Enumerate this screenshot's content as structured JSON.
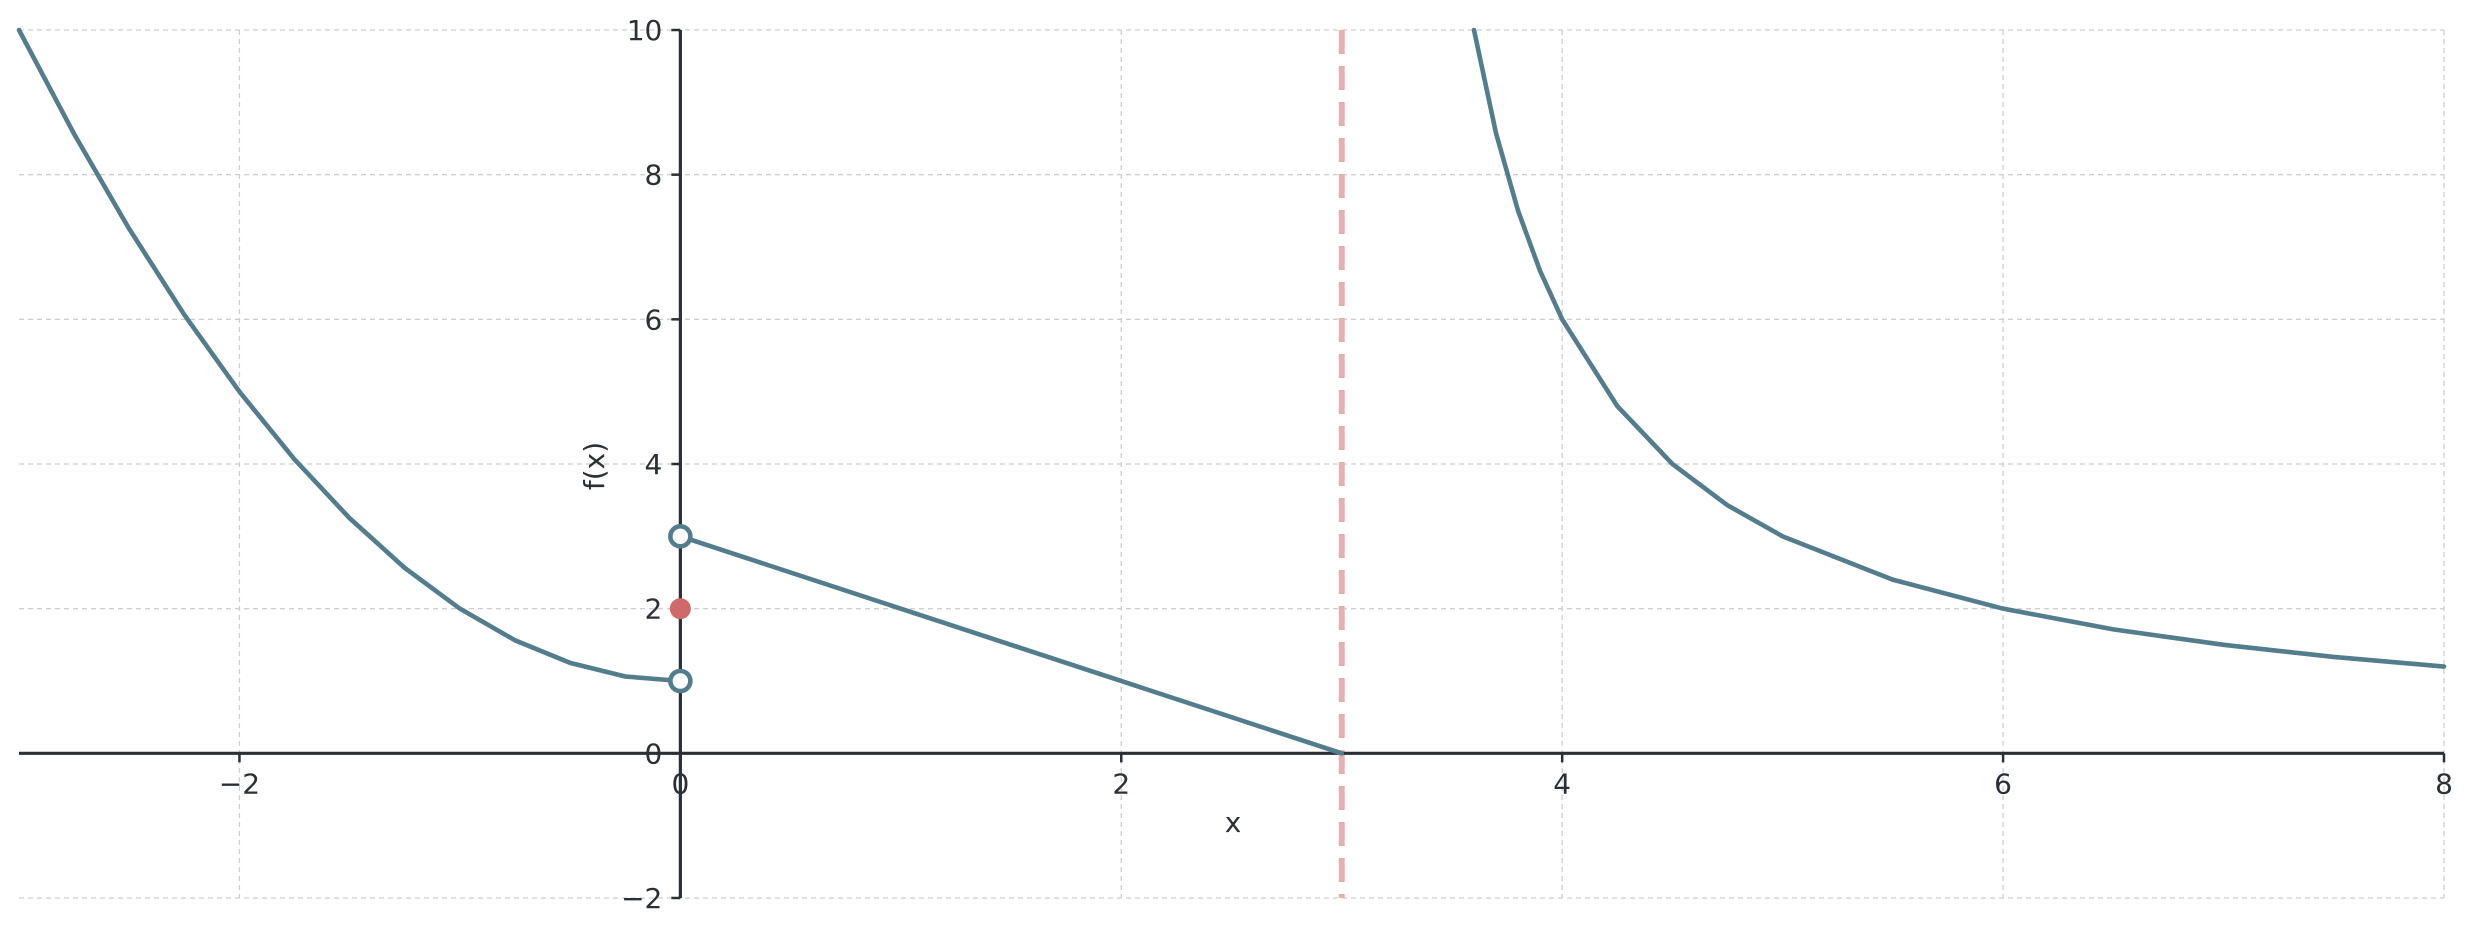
{
  "chart_data": {
    "type": "line",
    "title": "",
    "xlabel": "x",
    "ylabel": "f(x)",
    "xlim": [
      -3,
      8
    ],
    "ylim": [
      -2,
      10
    ],
    "x_ticks": [
      -2,
      0,
      2,
      4,
      6,
      8
    ],
    "x_tick_labels": [
      "−2",
      "0",
      "2",
      "4",
      "6",
      "8"
    ],
    "y_ticks": [
      -2,
      0,
      2,
      4,
      6,
      8,
      10
    ],
    "y_tick_labels": [
      "−2",
      "0",
      "2",
      "4",
      "6",
      "8",
      "10"
    ],
    "grid": true,
    "grid_style": "dashed",
    "colors": {
      "curve": "#537d8d",
      "asymptote": "#e3b1b4",
      "point": "#d06a6a",
      "axis": "#2b2f36",
      "grid": "#cfcfcf"
    },
    "series": [
      {
        "x": [
          -3,
          -2.75,
          -2.5,
          -2.25,
          -2,
          -1.75,
          -1.5,
          -1.25,
          -1,
          -0.75,
          -0.5,
          -0.25,
          0
        ],
        "y": [
          10,
          8.5625,
          7.25,
          6.0625,
          5,
          4.0625,
          3.25,
          2.5625,
          2,
          1.5625,
          1.25,
          1.0625,
          1
        ]
      },
      {
        "x": [
          0,
          3
        ],
        "y": [
          3,
          0
        ]
      },
      {
        "x": [
          3.6,
          3.7,
          3.8,
          3.9,
          4,
          4.25,
          4.5,
          4.75,
          5,
          5.5,
          6,
          6.5,
          7,
          7.5,
          8
        ],
        "y": [
          10,
          8.571,
          7.5,
          6.667,
          6,
          4.8,
          4,
          3.429,
          3,
          2.4,
          2,
          1.714,
          1.5,
          1.333,
          1.2
        ]
      }
    ],
    "open_points": [
      {
        "x": 0,
        "y": 3
      },
      {
        "x": 0,
        "y": 1
      }
    ],
    "filled_points": [
      {
        "x": 0,
        "y": 2
      }
    ],
    "vertical_asymptote": {
      "x": 3,
      "style": "dashed"
    }
  }
}
